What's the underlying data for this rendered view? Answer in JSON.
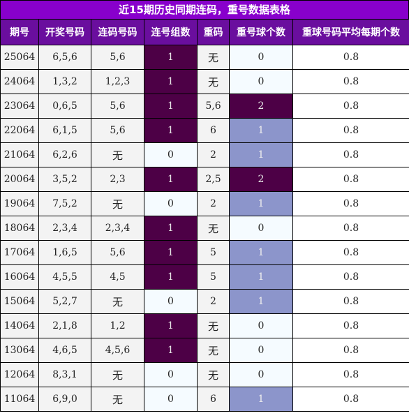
{
  "title": "近15期历史同期连码，重号数据表格",
  "headers": [
    "期号",
    "开奖号码",
    "连码号码",
    "连号组数",
    "重码",
    "重号球个数",
    "重球号码平均每期个数"
  ],
  "rows": [
    {
      "period": "25064",
      "draw": "6,5,6",
      "consec": "5,6",
      "groups": "1",
      "repeat": "无",
      "repeat_count": "0",
      "avg": "0.8"
    },
    {
      "period": "24064",
      "draw": "1,3,2",
      "consec": "1,2,3",
      "groups": "1",
      "repeat": "无",
      "repeat_count": "0",
      "avg": "0.8"
    },
    {
      "period": "23064",
      "draw": "0,6,5",
      "consec": "5,6",
      "groups": "1",
      "repeat": "5,6",
      "repeat_count": "2",
      "avg": "0.8"
    },
    {
      "period": "22064",
      "draw": "6,1,5",
      "consec": "5,6",
      "groups": "1",
      "repeat": "6",
      "repeat_count": "1",
      "avg": "0.8"
    },
    {
      "period": "21064",
      "draw": "6,2,6",
      "consec": "无",
      "groups": "0",
      "repeat": "2",
      "repeat_count": "1",
      "avg": "0.8"
    },
    {
      "period": "20064",
      "draw": "3,5,2",
      "consec": "2,3",
      "groups": "1",
      "repeat": "2,5",
      "repeat_count": "2",
      "avg": "0.8"
    },
    {
      "period": "19064",
      "draw": "7,5,2",
      "consec": "无",
      "groups": "0",
      "repeat": "2",
      "repeat_count": "1",
      "avg": "0.8"
    },
    {
      "period": "18064",
      "draw": "2,3,4",
      "consec": "2,3,4",
      "groups": "1",
      "repeat": "无",
      "repeat_count": "0",
      "avg": "0.8"
    },
    {
      "period": "17064",
      "draw": "1,6,5",
      "consec": "5,6",
      "groups": "1",
      "repeat": "5",
      "repeat_count": "1",
      "avg": "0.8"
    },
    {
      "period": "16064",
      "draw": "4,5,5",
      "consec": "4,5",
      "groups": "1",
      "repeat": "5",
      "repeat_count": "1",
      "avg": "0.8"
    },
    {
      "period": "15064",
      "draw": "5,2,7",
      "consec": "无",
      "groups": "0",
      "repeat": "2",
      "repeat_count": "1",
      "avg": "0.8"
    },
    {
      "period": "14064",
      "draw": "2,1,8",
      "consec": "1,2",
      "groups": "1",
      "repeat": "无",
      "repeat_count": "0",
      "avg": "0.8"
    },
    {
      "period": "13064",
      "draw": "4,6,5",
      "consec": "4,5,6",
      "groups": "1",
      "repeat": "无",
      "repeat_count": "0",
      "avg": "0.8"
    },
    {
      "period": "12064",
      "draw": "8,3,1",
      "consec": "无",
      "groups": "0",
      "repeat": "无",
      "repeat_count": "0",
      "avg": "0.8"
    },
    {
      "period": "11064",
      "draw": "6,9,0",
      "consec": "无",
      "groups": "0",
      "repeat": "6",
      "repeat_count": "1",
      "avg": "0.8"
    }
  ],
  "colors": {
    "title_bg": "#8800cc",
    "header_bg": "#6a0e9e",
    "zebra_bg": "#f3f3f3",
    "pale_bg": "#f5fbff",
    "highlight_dark": "#4d0046",
    "highlight_blue": "#8c95cb"
  }
}
